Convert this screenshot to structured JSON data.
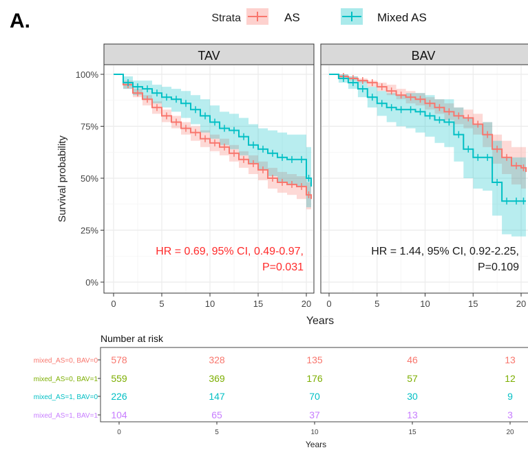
{
  "panel_label": "A.",
  "legend": {
    "title": "Strata",
    "items": [
      {
        "label": "AS",
        "color": "#f8766d"
      },
      {
        "label": "Mixed AS",
        "color": "#00bfc4"
      }
    ]
  },
  "chart_data": {
    "type": "line",
    "subtype": "kaplan-meier",
    "ylabel": "Survival probability",
    "xlabel": "Years",
    "xlim": [
      0,
      20
    ],
    "ylim": [
      0,
      1
    ],
    "xticks": [
      0,
      5,
      10,
      15,
      20
    ],
    "yticks": [
      0,
      0.25,
      0.5,
      0.75,
      1.0
    ],
    "ytick_labels": [
      "0%",
      "25%",
      "50%",
      "75%",
      "100%"
    ],
    "grid": true,
    "panels": [
      {
        "strip": "TAV",
        "annotation": [
          "HR = 0.69, 95% CI, 0.49-0.97,",
          "P=0.031"
        ],
        "annotation_color": "#ff2a2a",
        "series": [
          {
            "name": "AS",
            "color": "#f8766d",
            "x": [
              0,
              1,
              2,
              3,
              4,
              5,
              6,
              7,
              8,
              9,
              10,
              11,
              12,
              13,
              14,
              15,
              16,
              17,
              18,
              19,
              20,
              20.5
            ],
            "y": [
              1.0,
              0.95,
              0.91,
              0.88,
              0.84,
              0.8,
              0.77,
              0.74,
              0.72,
              0.69,
              0.67,
              0.65,
              0.62,
              0.59,
              0.57,
              0.54,
              0.5,
              0.48,
              0.47,
              0.46,
              0.42,
              0.4
            ],
            "lower": [
              1.0,
              0.93,
              0.89,
              0.85,
              0.81,
              0.77,
              0.74,
              0.71,
              0.68,
              0.65,
              0.63,
              0.61,
              0.58,
              0.55,
              0.52,
              0.49,
              0.45,
              0.43,
              0.42,
              0.4,
              0.35,
              0.32
            ],
            "upper": [
              1.0,
              0.97,
              0.93,
              0.9,
              0.87,
              0.83,
              0.8,
              0.77,
              0.75,
              0.73,
              0.71,
              0.69,
              0.66,
              0.63,
              0.61,
              0.58,
              0.55,
              0.53,
              0.52,
              0.51,
              0.48,
              0.47
            ]
          },
          {
            "name": "Mixed AS",
            "color": "#00bfc4",
            "x": [
              0,
              1,
              2,
              3,
              4,
              5,
              6,
              7,
              8,
              9,
              10,
              11,
              12,
              13,
              14,
              15,
              16,
              17,
              18,
              19,
              20,
              20.5
            ],
            "y": [
              1.0,
              0.96,
              0.94,
              0.93,
              0.91,
              0.89,
              0.88,
              0.86,
              0.83,
              0.8,
              0.77,
              0.74,
              0.73,
              0.7,
              0.66,
              0.64,
              0.62,
              0.6,
              0.59,
              0.59,
              0.5,
              0.46
            ],
            "lower": [
              1.0,
              0.93,
              0.9,
              0.88,
              0.86,
              0.84,
              0.82,
              0.79,
              0.76,
              0.72,
              0.69,
              0.66,
              0.64,
              0.61,
              0.57,
              0.54,
              0.51,
              0.48,
              0.47,
              0.46,
              0.36,
              0.3
            ],
            "upper": [
              1.0,
              0.99,
              0.97,
              0.97,
              0.95,
              0.94,
              0.93,
              0.92,
              0.9,
              0.88,
              0.85,
              0.82,
              0.81,
              0.79,
              0.76,
              0.74,
              0.73,
              0.72,
              0.71,
              0.71,
              0.65,
              0.62
            ]
          }
        ]
      },
      {
        "strip": "BAV",
        "annotation": [
          "HR = 1.44, 95% CI, 0.92-2.25,",
          "P=0.109"
        ],
        "annotation_color": "#1a1a1a",
        "series": [
          {
            "name": "AS",
            "color": "#f8766d",
            "x": [
              0,
              1,
              2,
              3,
              4,
              5,
              6,
              7,
              8,
              9,
              10,
              11,
              12,
              13,
              14,
              15,
              16,
              17,
              18,
              19,
              20,
              20.5
            ],
            "y": [
              1.0,
              0.99,
              0.98,
              0.97,
              0.96,
              0.94,
              0.92,
              0.9,
              0.89,
              0.88,
              0.86,
              0.84,
              0.82,
              0.8,
              0.79,
              0.76,
              0.71,
              0.64,
              0.6,
              0.56,
              0.55,
              0.53
            ],
            "lower": [
              1.0,
              0.98,
              0.97,
              0.96,
              0.94,
              0.92,
              0.9,
              0.88,
              0.86,
              0.85,
              0.83,
              0.81,
              0.78,
              0.76,
              0.74,
              0.71,
              0.65,
              0.57,
              0.52,
              0.47,
              0.45,
              0.42
            ],
            "upper": [
              1.0,
              1.0,
              0.99,
              0.98,
              0.97,
              0.96,
              0.95,
              0.93,
              0.92,
              0.91,
              0.89,
              0.88,
              0.86,
              0.84,
              0.83,
              0.81,
              0.77,
              0.71,
              0.68,
              0.65,
              0.65,
              0.63
            ]
          },
          {
            "name": "Mixed AS",
            "color": "#00bfc4",
            "x": [
              0,
              1,
              2,
              3,
              4,
              5,
              6,
              7,
              8,
              9,
              10,
              11,
              12,
              13,
              14,
              15,
              16,
              17,
              18,
              19,
              20,
              20.5
            ],
            "y": [
              1.0,
              0.98,
              0.96,
              0.93,
              0.89,
              0.86,
              0.84,
              0.83,
              0.83,
              0.82,
              0.8,
              0.78,
              0.77,
              0.71,
              0.64,
              0.6,
              0.6,
              0.48,
              0.39,
              0.39,
              0.39,
              0.39
            ],
            "lower": [
              1.0,
              0.96,
              0.93,
              0.89,
              0.84,
              0.8,
              0.77,
              0.75,
              0.74,
              0.72,
              0.7,
              0.67,
              0.65,
              0.58,
              0.5,
              0.45,
              0.44,
              0.32,
              0.23,
              0.22,
              0.22,
              0.22
            ],
            "upper": [
              1.0,
              1.0,
              0.99,
              0.97,
              0.94,
              0.92,
              0.91,
              0.9,
              0.91,
              0.91,
              0.9,
              0.88,
              0.88,
              0.84,
              0.79,
              0.76,
              0.77,
              0.68,
              0.6,
              0.6,
              0.6,
              0.6
            ]
          }
        ]
      }
    ],
    "risk_table": {
      "title": "Number at risk",
      "xlabel": "Years",
      "times": [
        0,
        5,
        10,
        15,
        20
      ],
      "rows": [
        {
          "label": "mixed_AS=0, BAV=0",
          "color": "#f8766d",
          "values": [
            578,
            328,
            135,
            46,
            13
          ]
        },
        {
          "label": "mixed_AS=0, BAV=1",
          "color": "#7cae00",
          "values": [
            559,
            369,
            176,
            57,
            12
          ]
        },
        {
          "label": "mixed_AS=1, BAV=0",
          "color": "#00bfc4",
          "values": [
            226,
            147,
            70,
            30,
            9
          ]
        },
        {
          "label": "mixed_AS=1, BAV=1",
          "color": "#c77cff",
          "values": [
            104,
            65,
            37,
            13,
            3
          ]
        }
      ]
    }
  }
}
